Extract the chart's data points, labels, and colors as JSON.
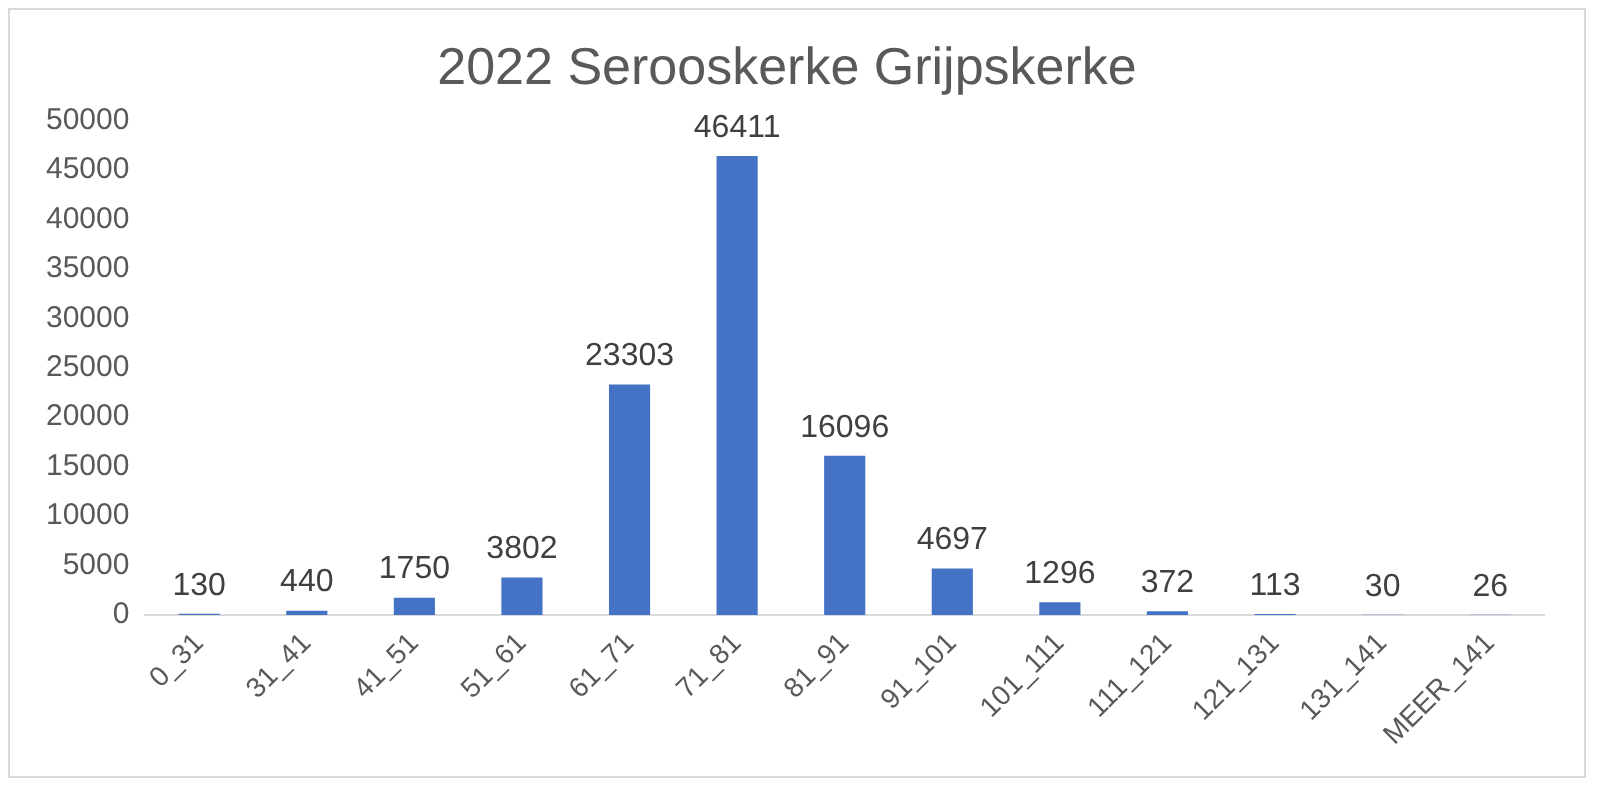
{
  "chart_data": {
    "type": "bar",
    "title": "2022 Serooskerke Grijpskerke",
    "categories": [
      "0_31",
      "31_41",
      "41_51",
      "51_61",
      "61_71",
      "71_81",
      "81_91",
      "91_101",
      "101_111",
      "111_121",
      "121_131",
      "131_141",
      "MEER_141"
    ],
    "values": [
      130,
      440,
      1750,
      3802,
      23303,
      46411,
      16096,
      4697,
      1296,
      372,
      113,
      30,
      26
    ],
    "color": "#4472c4",
    "ylim": [
      0,
      50000
    ],
    "yticks": [
      0,
      5000,
      10000,
      15000,
      20000,
      25000,
      30000,
      35000,
      40000,
      45000,
      50000
    ],
    "data_labels": true,
    "grid": false,
    "legend": false
  }
}
